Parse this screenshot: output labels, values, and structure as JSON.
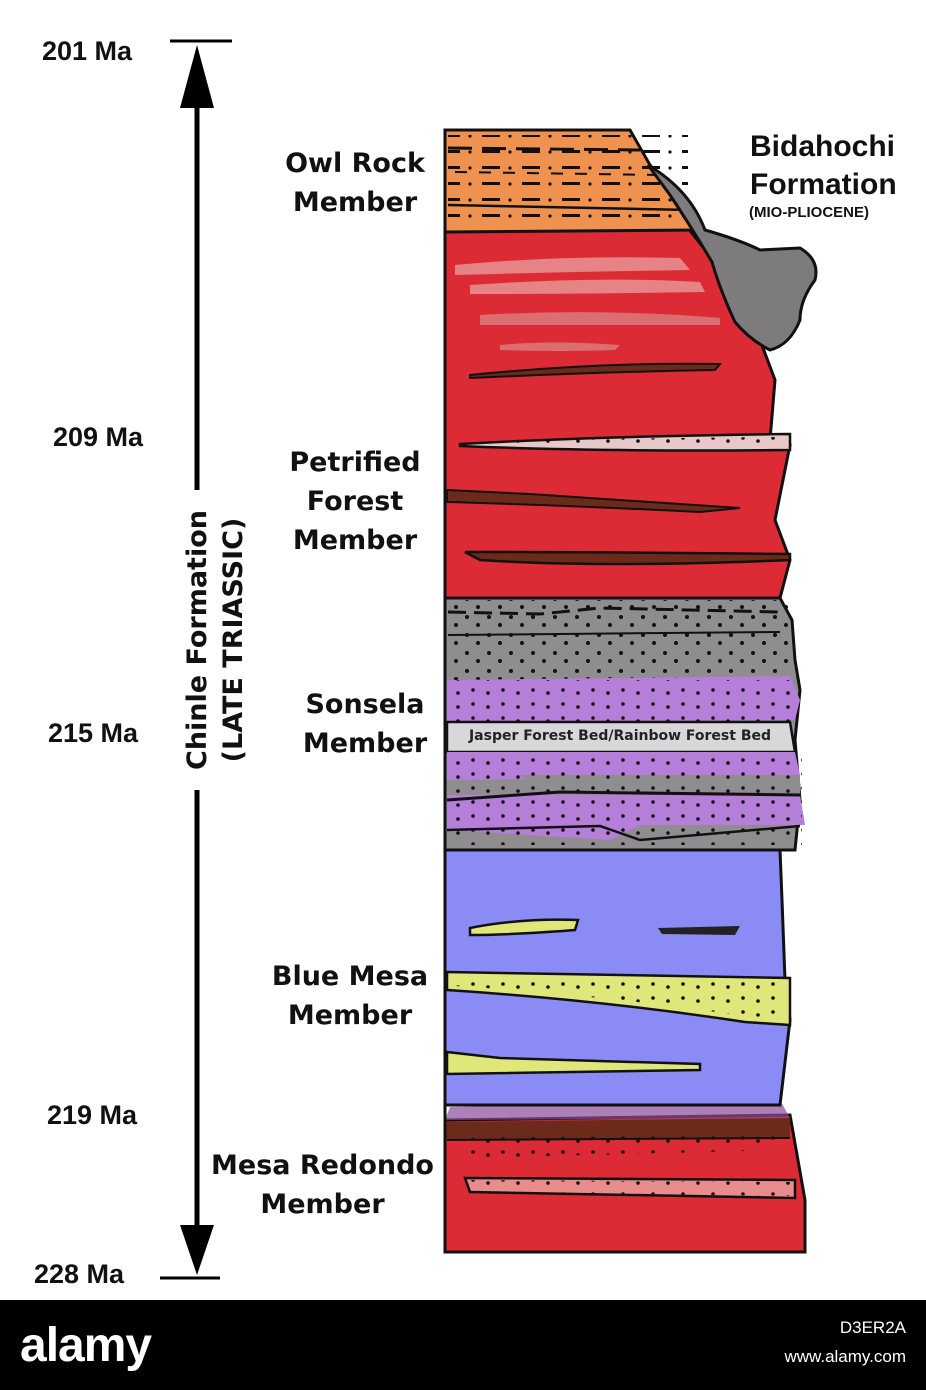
{
  "time_scale": {
    "labels": [
      "201 Ma",
      "209 Ma",
      "215 Ma",
      "219 Ma",
      "228 Ma"
    ],
    "formation_name": "Chinle Formation",
    "formation_age": "(LATE TRIASSIC)"
  },
  "members": [
    {
      "name": "Owl Rock\nMember"
    },
    {
      "name": "Petrified\nForest\nMember"
    },
    {
      "name": "Sonsela\nMember"
    },
    {
      "name": "Blue Mesa\nMember"
    },
    {
      "name": "Mesa Redondo\nMember"
    }
  ],
  "overlying": {
    "line1": "Bidahochi",
    "line2": "Formation",
    "age": "(MIO-PLIOCENE)"
  },
  "bed_label": "Jasper Forest Bed/Rainbow Forest Bed",
  "colors": {
    "owl_rock": "#f0924f",
    "petrified_forest": "#dc2b35",
    "sonsela_gray": "#8f8d90",
    "sonsela_purple": "#b57ed8",
    "blue_mesa": "#8b8bf5",
    "mesa_redondo": "#dc2b35",
    "mudstone_dark": "#6b2a1a",
    "sandstone_yellow": "#dfe67a",
    "bidahochi": "#7d7b7d"
  },
  "footer": {
    "logo": "alamy",
    "image_id": "D3ER2A",
    "site": "www.alamy.com"
  }
}
